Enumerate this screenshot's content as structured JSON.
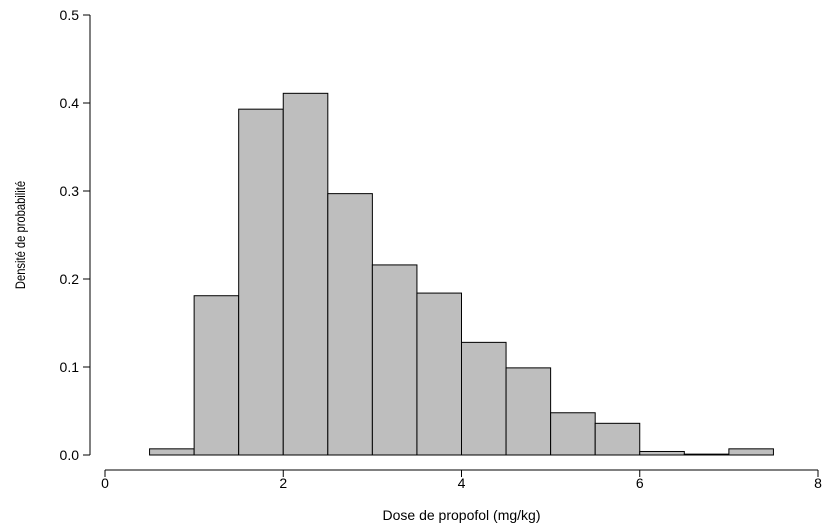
{
  "chart_data": {
    "type": "bar",
    "title": "",
    "xlabel": "Dose de propofol (mg/kg)",
    "ylabel": "Densité de probabilité",
    "xlim": [
      0,
      8
    ],
    "ylim": [
      0,
      0.5
    ],
    "x_ticks": [
      0,
      2,
      4,
      6,
      8
    ],
    "x_tick_labels": [
      "0",
      "2",
      "4",
      "6",
      "8"
    ],
    "y_ticks": [
      0.0,
      0.1,
      0.2,
      0.3,
      0.4,
      0.5
    ],
    "y_tick_labels": [
      "0.0",
      "0.1",
      "0.2",
      "0.3",
      "0.4",
      "0.5"
    ],
    "grid": false,
    "bin_edges": [
      0.5,
      1.0,
      1.5,
      2.0,
      2.5,
      3.0,
      3.5,
      4.0,
      4.5,
      5.0,
      5.5,
      6.0,
      6.5,
      7.0,
      7.5
    ],
    "values": [
      0.007,
      0.181,
      0.393,
      0.411,
      0.297,
      0.216,
      0.184,
      0.128,
      0.099,
      0.048,
      0.036,
      0.004,
      0.001,
      0.007
    ],
    "bar_fill": "#bebebe",
    "bar_stroke": "#000000"
  }
}
